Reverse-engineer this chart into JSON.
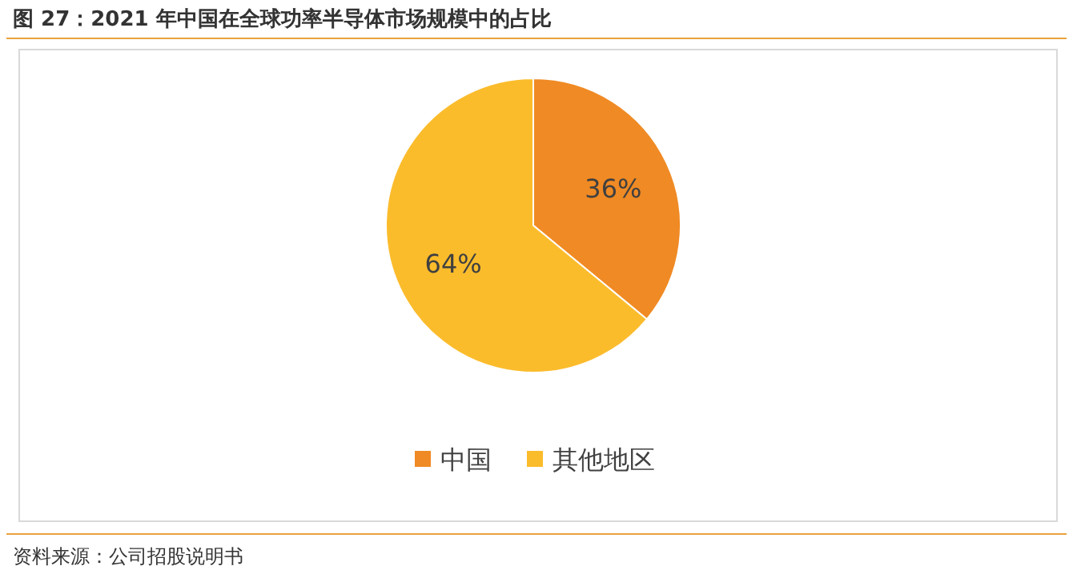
{
  "chart_data": {
    "type": "pie",
    "title": "图 27：2021 年中国在全球功率半导体市场规模中的占比",
    "categories": [
      "中国",
      "其他地区"
    ],
    "values": [
      36,
      64
    ],
    "colors": [
      "#f08a24",
      "#fbbc2c"
    ],
    "value_labels": [
      "36%",
      "64%"
    ],
    "legend": "bottom",
    "annotations": [
      "资料来源：公司招股说明书"
    ]
  }
}
